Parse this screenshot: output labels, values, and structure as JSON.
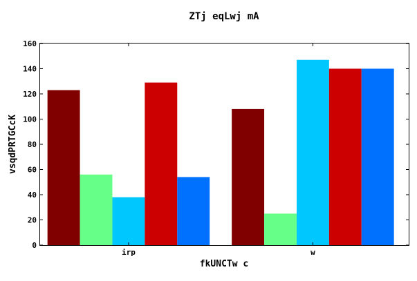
{
  "chart_data": {
    "type": "bar",
    "title": "ZTj eqLwj mA",
    "xlabel": "fkUNCTw c",
    "ylabel": "vsqdPRTGCcK",
    "categories": [
      "irp",
      "w"
    ],
    "series": [
      {
        "values": [
          123,
          108
        ],
        "color": "#800000"
      },
      {
        "values": [
          56,
          25
        ],
        "color": "#66ff88"
      },
      {
        "values": [
          38,
          147
        ],
        "color": "#00c8ff"
      },
      {
        "values": [
          129,
          140
        ],
        "color": "#cc0000"
      },
      {
        "values": [
          54,
          140
        ],
        "color": "#0070ff"
      }
    ],
    "ylim": [
      0,
      160
    ],
    "yticks": [
      0,
      20,
      40,
      60,
      80,
      100,
      120,
      140,
      160
    ],
    "grid": false,
    "legend": "none"
  }
}
